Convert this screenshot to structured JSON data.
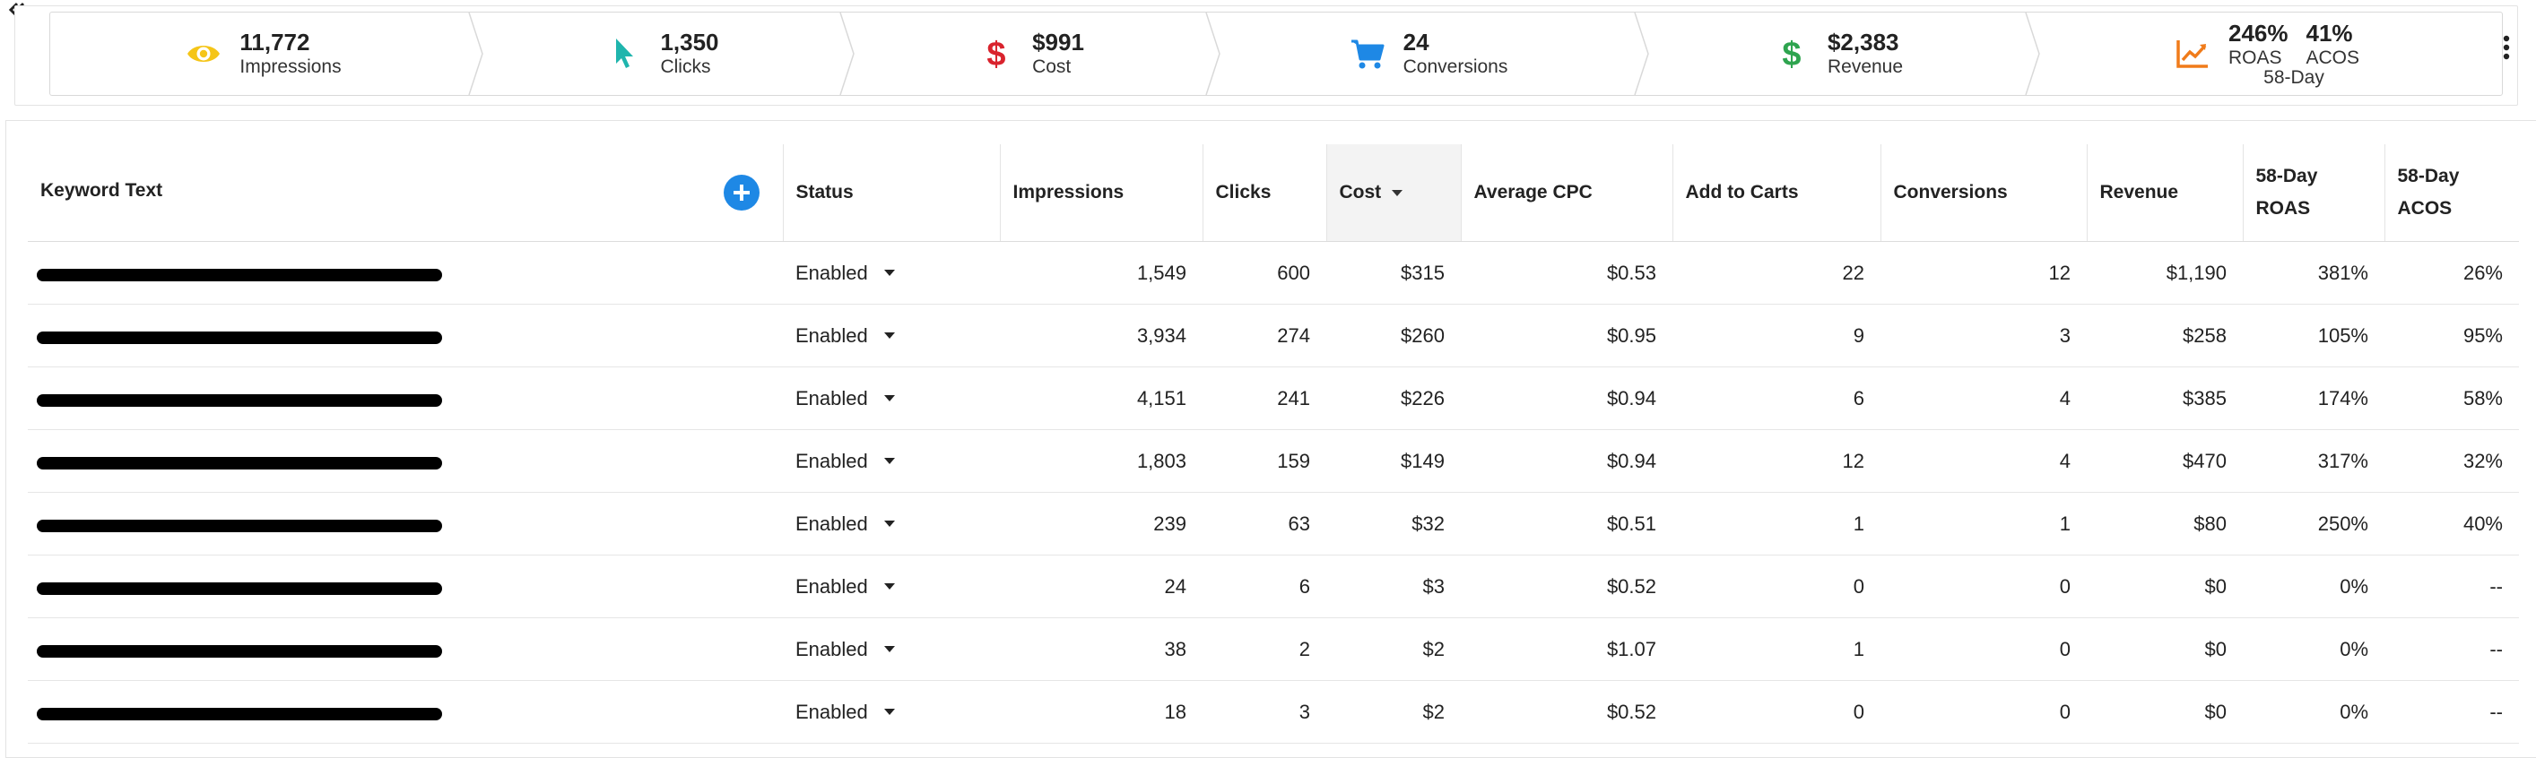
{
  "summary": {
    "impressions": {
      "value": "11,772",
      "label": "Impressions",
      "icon": "eye-icon",
      "color": "#F5C518"
    },
    "clicks": {
      "value": "1,350",
      "label": "Clicks",
      "icon": "cursor-icon",
      "color": "#1FB5AD"
    },
    "cost": {
      "value": "$991",
      "label": "Cost",
      "icon": "dollar-icon",
      "color": "#D9232D"
    },
    "conversions": {
      "value": "24",
      "label": "Conversions",
      "icon": "cart-icon",
      "color": "#1E88E5"
    },
    "revenue": {
      "value": "$2,383",
      "label": "Revenue",
      "icon": "dollar-icon",
      "color": "#2EA44F"
    },
    "roas": {
      "value": "246%",
      "label": "ROAS",
      "icon": "trend-chart-icon",
      "color": "#F07B1A"
    },
    "acos": {
      "value": "41%",
      "label": "ACOS"
    },
    "period": "58-Day"
  },
  "table": {
    "headers": {
      "keyword": "Keyword Text",
      "status": "Status",
      "impressions": "Impressions",
      "clicks": "Clicks",
      "cost": "Cost",
      "avg_cpc": "Average CPC",
      "add_to_carts": "Add to Carts",
      "conversions": "Conversions",
      "revenue": "Revenue",
      "roas_line1": "58-Day",
      "roas_line2": "ROAS",
      "acos_line1": "58-Day",
      "acos_line2": "ACOS"
    },
    "rows": [
      {
        "status": "Enabled",
        "impressions": "1,549",
        "clicks": "600",
        "cost": "$315",
        "avg_cpc": "$0.53",
        "add_to_carts": "22",
        "conversions": "12",
        "revenue": "$1,190",
        "roas": "381%",
        "acos": "26%"
      },
      {
        "status": "Enabled",
        "impressions": "3,934",
        "clicks": "274",
        "cost": "$260",
        "avg_cpc": "$0.95",
        "add_to_carts": "9",
        "conversions": "3",
        "revenue": "$258",
        "roas": "105%",
        "acos": "95%"
      },
      {
        "status": "Enabled",
        "impressions": "4,151",
        "clicks": "241",
        "cost": "$226",
        "avg_cpc": "$0.94",
        "add_to_carts": "6",
        "conversions": "4",
        "revenue": "$385",
        "roas": "174%",
        "acos": "58%"
      },
      {
        "status": "Enabled",
        "impressions": "1,803",
        "clicks": "159",
        "cost": "$149",
        "avg_cpc": "$0.94",
        "add_to_carts": "12",
        "conversions": "4",
        "revenue": "$470",
        "roas": "317%",
        "acos": "32%"
      },
      {
        "status": "Enabled",
        "impressions": "239",
        "clicks": "63",
        "cost": "$32",
        "avg_cpc": "$0.51",
        "add_to_carts": "1",
        "conversions": "1",
        "revenue": "$80",
        "roas": "250%",
        "acos": "40%"
      },
      {
        "status": "Enabled",
        "impressions": "24",
        "clicks": "6",
        "cost": "$3",
        "avg_cpc": "$0.52",
        "add_to_carts": "0",
        "conversions": "0",
        "revenue": "$0",
        "roas": "0%",
        "acos": "--"
      },
      {
        "status": "Enabled",
        "impressions": "38",
        "clicks": "2",
        "cost": "$2",
        "avg_cpc": "$1.07",
        "add_to_carts": "1",
        "conversions": "0",
        "revenue": "$0",
        "roas": "0%",
        "acos": "--"
      },
      {
        "status": "Enabled",
        "impressions": "18",
        "clicks": "3",
        "cost": "$2",
        "avg_cpc": "$0.52",
        "add_to_carts": "0",
        "conversions": "0",
        "revenue": "$0",
        "roas": "0%",
        "acos": "--"
      }
    ]
  }
}
